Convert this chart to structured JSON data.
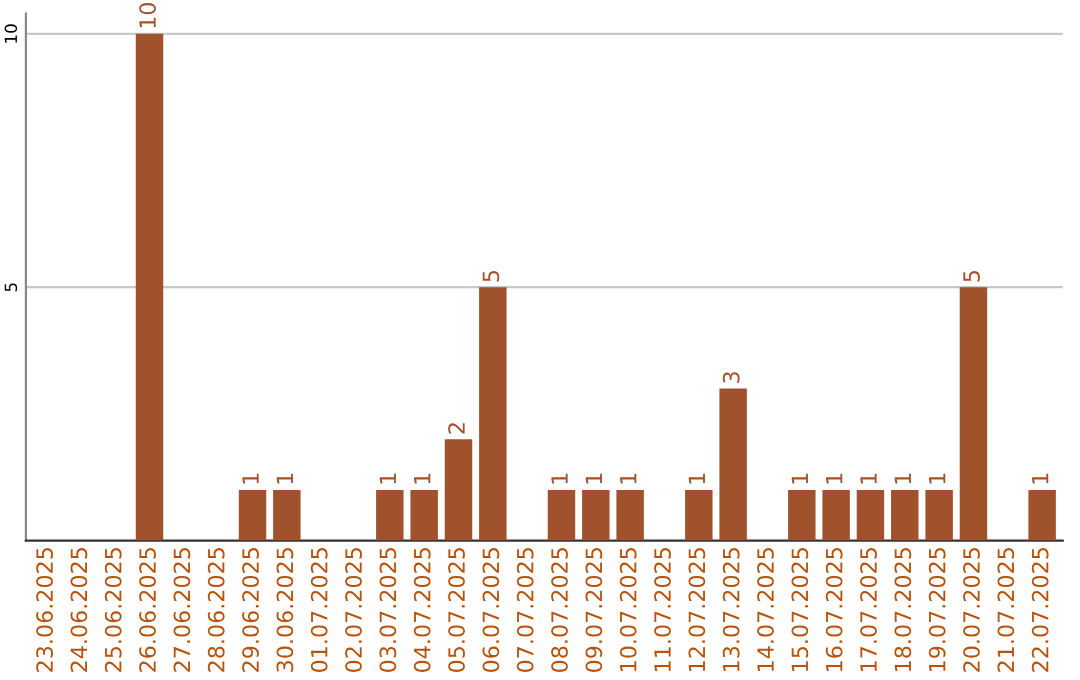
{
  "chart_data": {
    "type": "bar",
    "categories": [
      "23.06.2025",
      "24.06.2025",
      "25.06.2025",
      "26.06.2025",
      "27.06.2025",
      "28.06.2025",
      "29.06.2025",
      "30.06.2025",
      "01.07.2025",
      "02.07.2025",
      "03.07.2025",
      "04.07.2025",
      "05.07.2025",
      "06.07.2025",
      "07.07.2025",
      "08.07.2025",
      "09.07.2025",
      "10.07.2025",
      "11.07.2025",
      "12.07.2025",
      "13.07.2025",
      "14.07.2025",
      "15.07.2025",
      "16.07.2025",
      "17.07.2025",
      "18.07.2025",
      "19.07.2025",
      "20.07.2025",
      "21.07.2025",
      "22.07.2025"
    ],
    "values": [
      0,
      0,
      0,
      10,
      0,
      0,
      1,
      1,
      0,
      0,
      1,
      1,
      2,
      5,
      0,
      1,
      1,
      1,
      0,
      1,
      3,
      0,
      1,
      1,
      1,
      1,
      1,
      5,
      0,
      1
    ],
    "value_labels": [
      null,
      null,
      null,
      "10",
      null,
      null,
      "1",
      "1",
      null,
      null,
      "1",
      "1",
      "2",
      "5",
      null,
      "1",
      "1",
      "1",
      null,
      "1",
      "3",
      null,
      "1",
      "1",
      "1",
      "1",
      "1",
      "5",
      null,
      "1"
    ],
    "color": "#a0522d",
    "ylim": [
      0,
      10.4
    ],
    "yticks": [
      5,
      10
    ],
    "grid": "y"
  }
}
